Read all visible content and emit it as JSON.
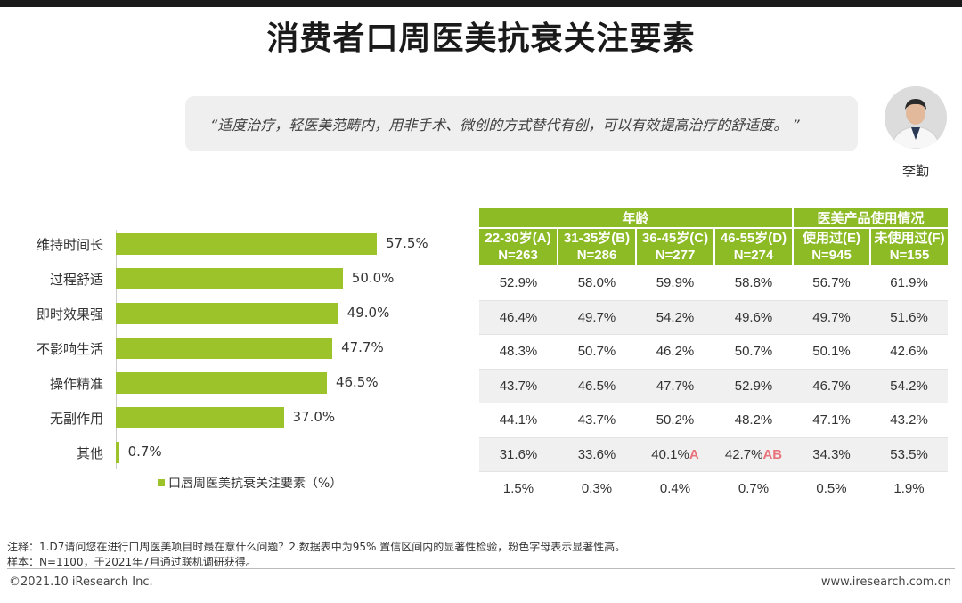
{
  "title": "消费者口周医美抗衰关注要素",
  "quote": "“适度治疗，轻医美范畴内，用非手术、微创的方式替代有创，可以有效提高治疗的舒适度。 ”",
  "person_name": "李勤",
  "chart_data": {
    "type": "bar",
    "orientation": "horizontal",
    "categories": [
      "维持时间长",
      "过程舒适",
      "即时效果强",
      "不影响生活",
      "操作精准",
      "无副作用",
      "其他"
    ],
    "values": [
      57.5,
      50.0,
      49.0,
      47.7,
      46.5,
      37.0,
      0.7
    ],
    "value_labels": [
      "57.5%",
      "50.0%",
      "49.0%",
      "47.7%",
      "46.5%",
      "37.0%",
      "0.7%"
    ],
    "series_name": "口唇周医美抗衰关注要素（%）",
    "color": "#9dc32a",
    "xlim": [
      0,
      70
    ]
  },
  "table": {
    "groups": [
      "年龄",
      "医美产品使用情况"
    ],
    "columns": [
      {
        "label": "22-30岁(A)",
        "n": "N=263"
      },
      {
        "label": "31-35岁(B)",
        "n": "N=286"
      },
      {
        "label": "36-45岁(C)",
        "n": "N=277"
      },
      {
        "label": "46-55岁(D)",
        "n": "N=274"
      },
      {
        "label": "使用过(E)",
        "n": "N=945"
      },
      {
        "label": "未使用过(F)",
        "n": "N=155"
      }
    ],
    "rows": [
      [
        {
          "v": "52.9%",
          "s": ""
        },
        {
          "v": "58.0%",
          "s": ""
        },
        {
          "v": "59.9%",
          "s": ""
        },
        {
          "v": "58.8%",
          "s": ""
        },
        {
          "v": "56.7%",
          "s": ""
        },
        {
          "v": "61.9%",
          "s": ""
        }
      ],
      [
        {
          "v": "46.4%",
          "s": ""
        },
        {
          "v": "49.7%",
          "s": ""
        },
        {
          "v": "54.2%",
          "s": ""
        },
        {
          "v": "49.6%",
          "s": ""
        },
        {
          "v": "49.7%",
          "s": ""
        },
        {
          "v": "51.6%",
          "s": ""
        }
      ],
      [
        {
          "v": "48.3%",
          "s": ""
        },
        {
          "v": "50.7%",
          "s": ""
        },
        {
          "v": "46.2%",
          "s": ""
        },
        {
          "v": "50.7%",
          "s": ""
        },
        {
          "v": "50.1%",
          "s": ""
        },
        {
          "v": "42.6%",
          "s": ""
        }
      ],
      [
        {
          "v": "43.7%",
          "s": ""
        },
        {
          "v": "46.5%",
          "s": ""
        },
        {
          "v": "47.7%",
          "s": ""
        },
        {
          "v": "52.9%",
          "s": ""
        },
        {
          "v": "46.7%",
          "s": ""
        },
        {
          "v": "54.2%",
          "s": ""
        }
      ],
      [
        {
          "v": "44.1%",
          "s": ""
        },
        {
          "v": "43.7%",
          "s": ""
        },
        {
          "v": "50.2%",
          "s": ""
        },
        {
          "v": "48.2%",
          "s": ""
        },
        {
          "v": "47.1%",
          "s": ""
        },
        {
          "v": "43.2%",
          "s": ""
        }
      ],
      [
        {
          "v": "31.6%",
          "s": ""
        },
        {
          "v": "33.6%",
          "s": ""
        },
        {
          "v": "40.1%",
          "s": "A"
        },
        {
          "v": "42.7%",
          "s": "AB"
        },
        {
          "v": "34.3%",
          "s": ""
        },
        {
          "v": "53.5%",
          "s": ""
        }
      ],
      [
        {
          "v": "1.5%",
          "s": ""
        },
        {
          "v": "0.3%",
          "s": ""
        },
        {
          "v": "0.4%",
          "s": ""
        },
        {
          "v": "0.7%",
          "s": ""
        },
        {
          "v": "0.5%",
          "s": ""
        },
        {
          "v": "1.9%",
          "s": ""
        }
      ]
    ],
    "header_color": "#8cbb26",
    "significance_color": "#e8737a"
  },
  "notes": [
    "注释：1.D7请问您在进行口周医美项目时最在意什么问题？2.数据表中为95% 置信区间内的显著性检验，粉色字母表示显著性高。",
    "样本：N=1100，于2021年7月通过联机调研获得。"
  ],
  "footer": {
    "copyright": "©2021.10 iResearch Inc.",
    "website": "www.iresearch.com.cn"
  }
}
